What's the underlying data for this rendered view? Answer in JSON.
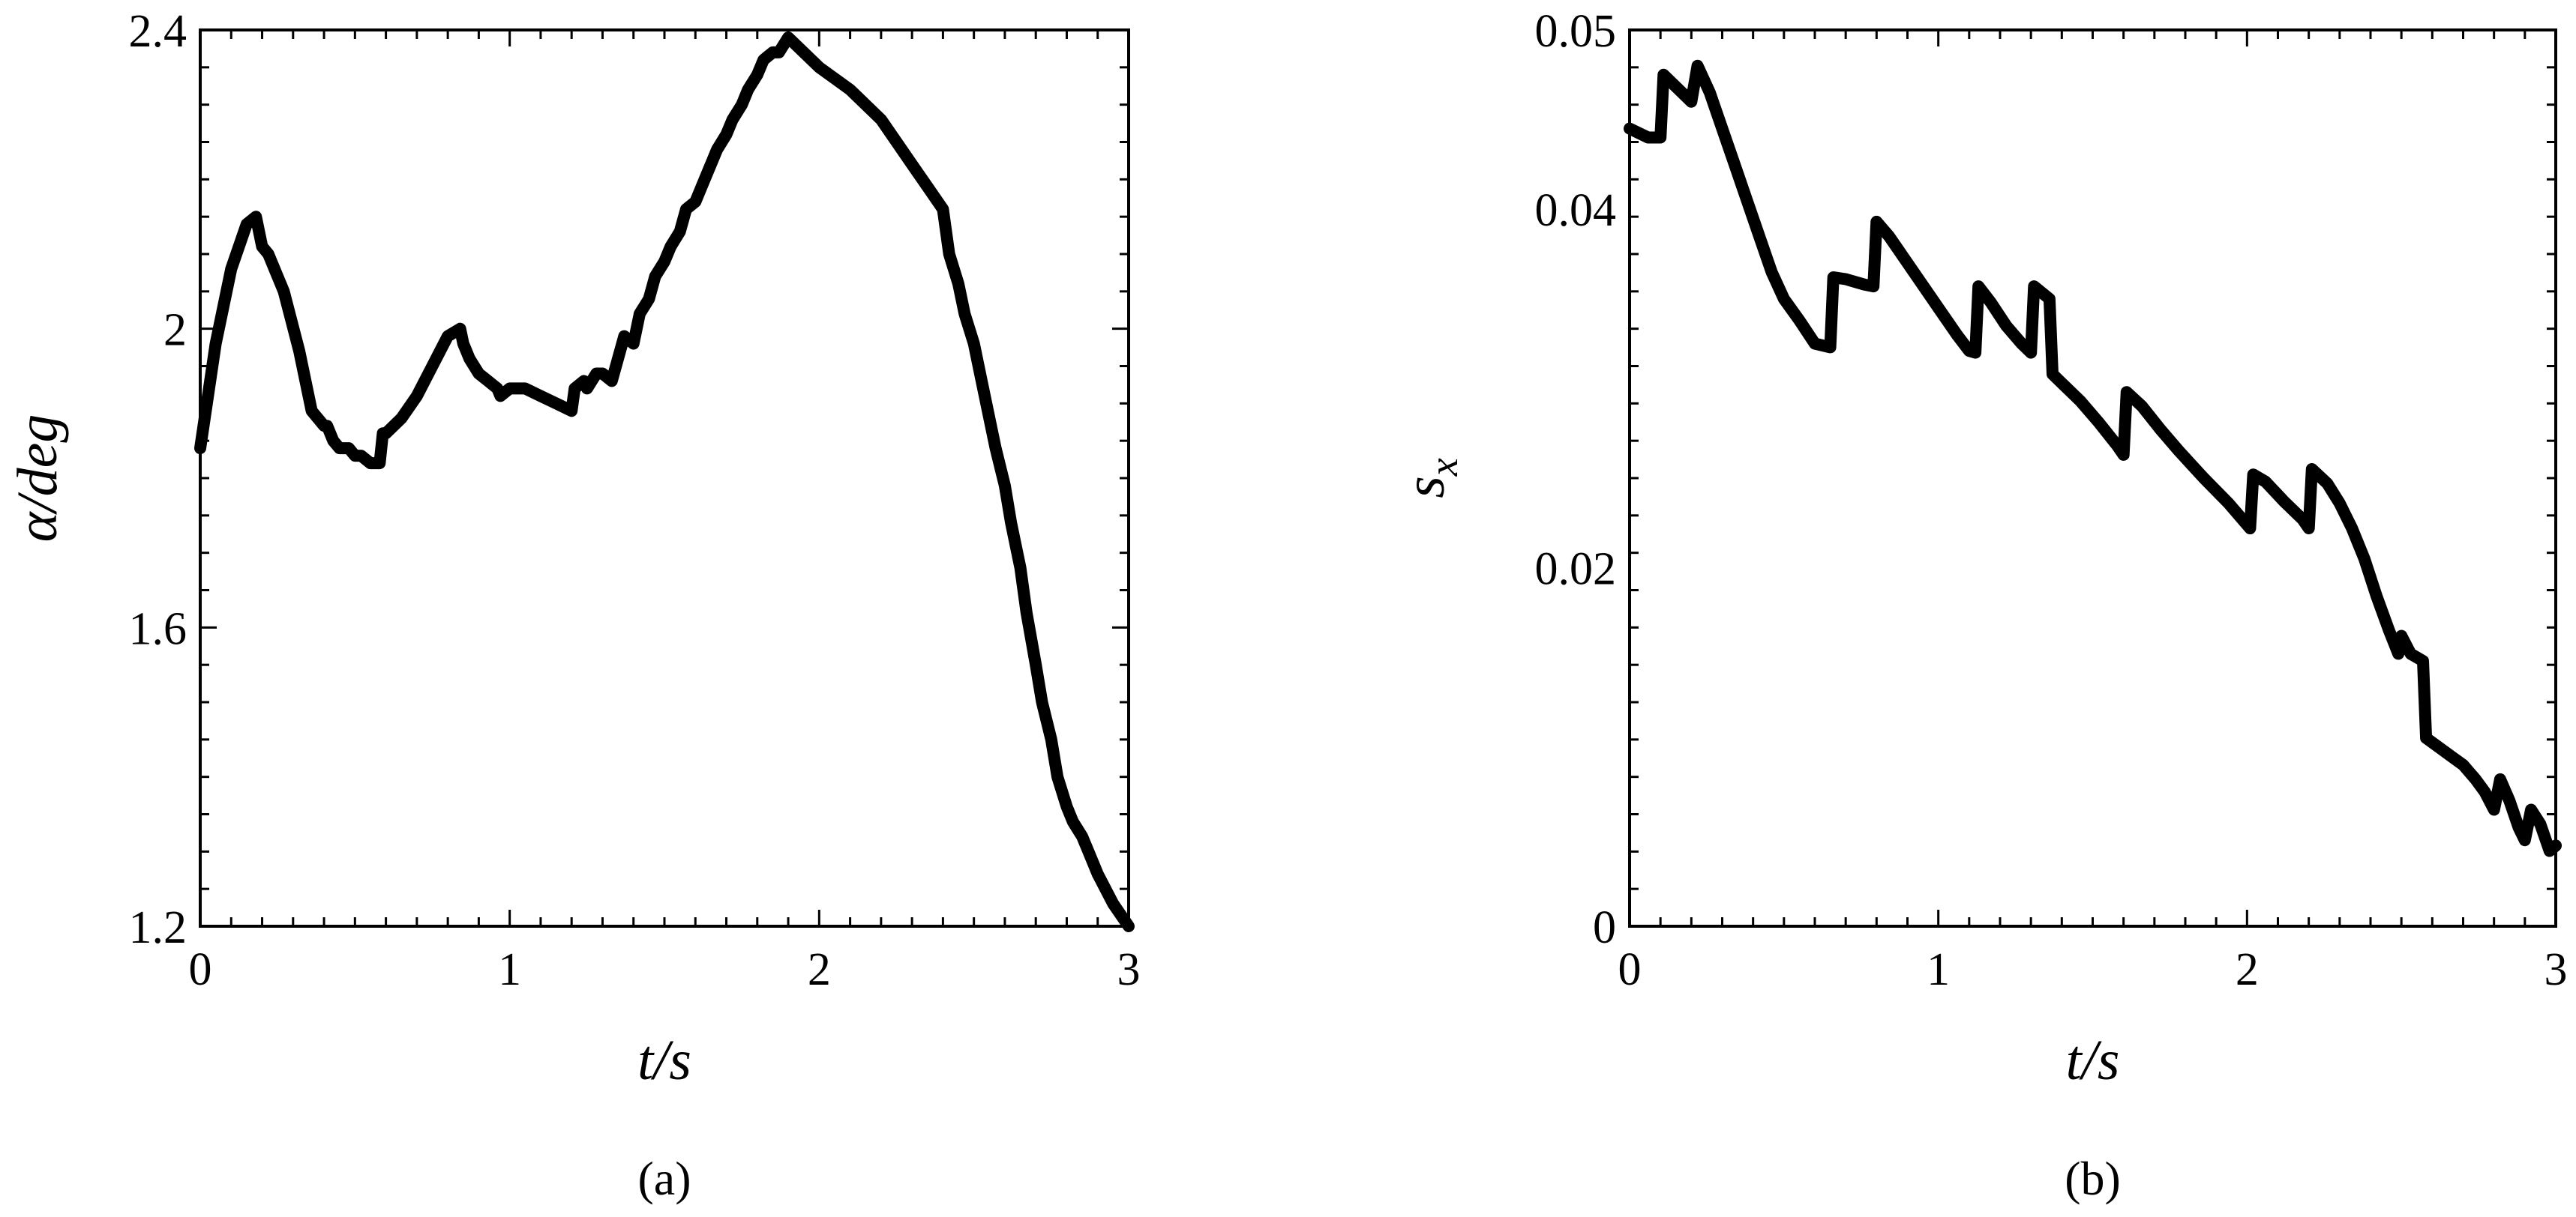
{
  "chart_data": [
    {
      "type": "line",
      "panel_label": "(a)",
      "xlabel": "t/s",
      "ylabel": "α/deg",
      "xlim": [
        0,
        3
      ],
      "ylim": [
        1.2,
        2.4
      ],
      "xticks": [
        0,
        1,
        2,
        3
      ],
      "xtick_labels": [
        "0",
        "1",
        "2",
        "3"
      ],
      "yticks": [
        1.2,
        1.6,
        2.0,
        2.4
      ],
      "ytick_labels": [
        "1.2",
        "1.6",
        "2",
        "2.4"
      ],
      "series": [
        {
          "x": [
            0.0,
            0.05,
            0.1,
            0.15,
            0.18,
            0.19,
            0.2,
            0.22,
            0.27,
            0.32,
            0.36,
            0.4,
            0.41,
            0.43,
            0.45,
            0.47,
            0.48,
            0.5,
            0.52,
            0.55,
            0.58,
            0.59,
            0.6,
            0.65,
            0.7,
            0.75,
            0.8,
            0.84,
            0.85,
            0.87,
            0.9,
            0.93,
            0.96,
            0.97,
            1.0,
            1.05,
            1.1,
            1.15,
            1.2,
            1.21,
            1.24,
            1.25,
            1.28,
            1.3,
            1.33,
            1.35,
            1.37,
            1.4,
            1.42,
            1.45,
            1.47,
            1.5,
            1.52,
            1.55,
            1.57,
            1.6,
            1.62,
            1.65,
            1.67,
            1.7,
            1.72,
            1.75,
            1.77,
            1.8,
            1.82,
            1.85,
            1.87,
            1.9,
            2.0,
            2.1,
            2.2,
            2.3,
            2.35,
            2.4,
            2.42,
            2.45,
            2.47,
            2.5,
            2.52,
            2.55,
            2.57,
            2.6,
            2.62,
            2.65,
            2.67,
            2.7,
            2.72,
            2.75,
            2.77,
            2.8,
            2.82,
            2.85,
            2.87,
            2.9,
            2.95,
            3.0
          ],
          "y": [
            1.84,
            1.98,
            2.08,
            2.14,
            2.15,
            2.13,
            2.11,
            2.1,
            2.05,
            1.97,
            1.89,
            1.87,
            1.87,
            1.85,
            1.84,
            1.84,
            1.84,
            1.83,
            1.83,
            1.82,
            1.82,
            1.86,
            1.86,
            1.88,
            1.91,
            1.95,
            1.99,
            2.0,
            1.98,
            1.96,
            1.94,
            1.93,
            1.92,
            1.91,
            1.92,
            1.92,
            1.91,
            1.9,
            1.89,
            1.92,
            1.93,
            1.92,
            1.94,
            1.94,
            1.93,
            1.96,
            1.99,
            1.98,
            2.02,
            2.04,
            2.07,
            2.09,
            2.11,
            2.13,
            2.16,
            2.17,
            2.19,
            2.22,
            2.24,
            2.26,
            2.28,
            2.3,
            2.32,
            2.34,
            2.36,
            2.37,
            2.37,
            2.39,
            2.35,
            2.32,
            2.28,
            2.22,
            2.19,
            2.16,
            2.1,
            2.06,
            2.02,
            1.98,
            1.94,
            1.88,
            1.84,
            1.79,
            1.74,
            1.68,
            1.62,
            1.55,
            1.5,
            1.45,
            1.4,
            1.36,
            1.34,
            1.32,
            1.3,
            1.27,
            1.23,
            1.2
          ]
        }
      ]
    },
    {
      "type": "line",
      "panel_label": "(b)",
      "xlabel": "t/s",
      "ylabel": "sx",
      "xlim": [
        0,
        3
      ],
      "ylim": [
        0,
        0.05
      ],
      "xticks": [
        0,
        1,
        2,
        3
      ],
      "xtick_labels": [
        "0",
        "1",
        "2",
        "3"
      ],
      "yticks": [
        0,
        0.02,
        0.04,
        0.05
      ],
      "ytick_labels": [
        "0",
        "0.02",
        "0.04",
        "0.05"
      ],
      "series": [
        {
          "x": [
            0.0,
            0.06,
            0.1,
            0.11,
            0.2,
            0.22,
            0.26,
            0.3,
            0.34,
            0.38,
            0.42,
            0.46,
            0.5,
            0.55,
            0.6,
            0.65,
            0.66,
            0.7,
            0.76,
            0.79,
            0.8,
            0.84,
            0.88,
            0.94,
            1.0,
            1.06,
            1.1,
            1.12,
            1.13,
            1.17,
            1.22,
            1.27,
            1.3,
            1.31,
            1.36,
            1.37,
            1.4,
            1.46,
            1.52,
            1.58,
            1.6,
            1.61,
            1.66,
            1.72,
            1.78,
            1.86,
            1.94,
            2.01,
            2.02,
            2.06,
            2.12,
            2.18,
            2.2,
            2.21,
            2.26,
            2.3,
            2.34,
            2.38,
            2.42,
            2.46,
            2.49,
            2.5,
            2.53,
            2.57,
            2.58,
            2.62,
            2.66,
            2.7,
            2.74,
            2.77,
            2.8,
            2.82,
            2.85,
            2.88,
            2.9,
            2.92,
            2.95,
            2.98,
            3.0
          ],
          "y": [
            0.0445,
            0.044,
            0.044,
            0.0475,
            0.046,
            0.048,
            0.0465,
            0.0445,
            0.0425,
            0.0405,
            0.0385,
            0.0365,
            0.035,
            0.0338,
            0.0325,
            0.0323,
            0.0362,
            0.0361,
            0.0358,
            0.0357,
            0.0393,
            0.0385,
            0.0375,
            0.036,
            0.0345,
            0.033,
            0.0321,
            0.032,
            0.0357,
            0.0348,
            0.0335,
            0.0325,
            0.032,
            0.0357,
            0.035,
            0.0308,
            0.0303,
            0.0293,
            0.0281,
            0.0268,
            0.0263,
            0.0298,
            0.029,
            0.0277,
            0.0265,
            0.025,
            0.0236,
            0.0222,
            0.0252,
            0.0248,
            0.0237,
            0.0227,
            0.0222,
            0.0255,
            0.0247,
            0.0236,
            0.0222,
            0.0205,
            0.0184,
            0.0165,
            0.0152,
            0.0162,
            0.0152,
            0.0148,
            0.0105,
            0.01,
            0.0095,
            0.009,
            0.0082,
            0.0075,
            0.0065,
            0.0082,
            0.007,
            0.0055,
            0.0048,
            0.0065,
            0.0057,
            0.0042,
            0.0045
          ]
        }
      ]
    }
  ]
}
